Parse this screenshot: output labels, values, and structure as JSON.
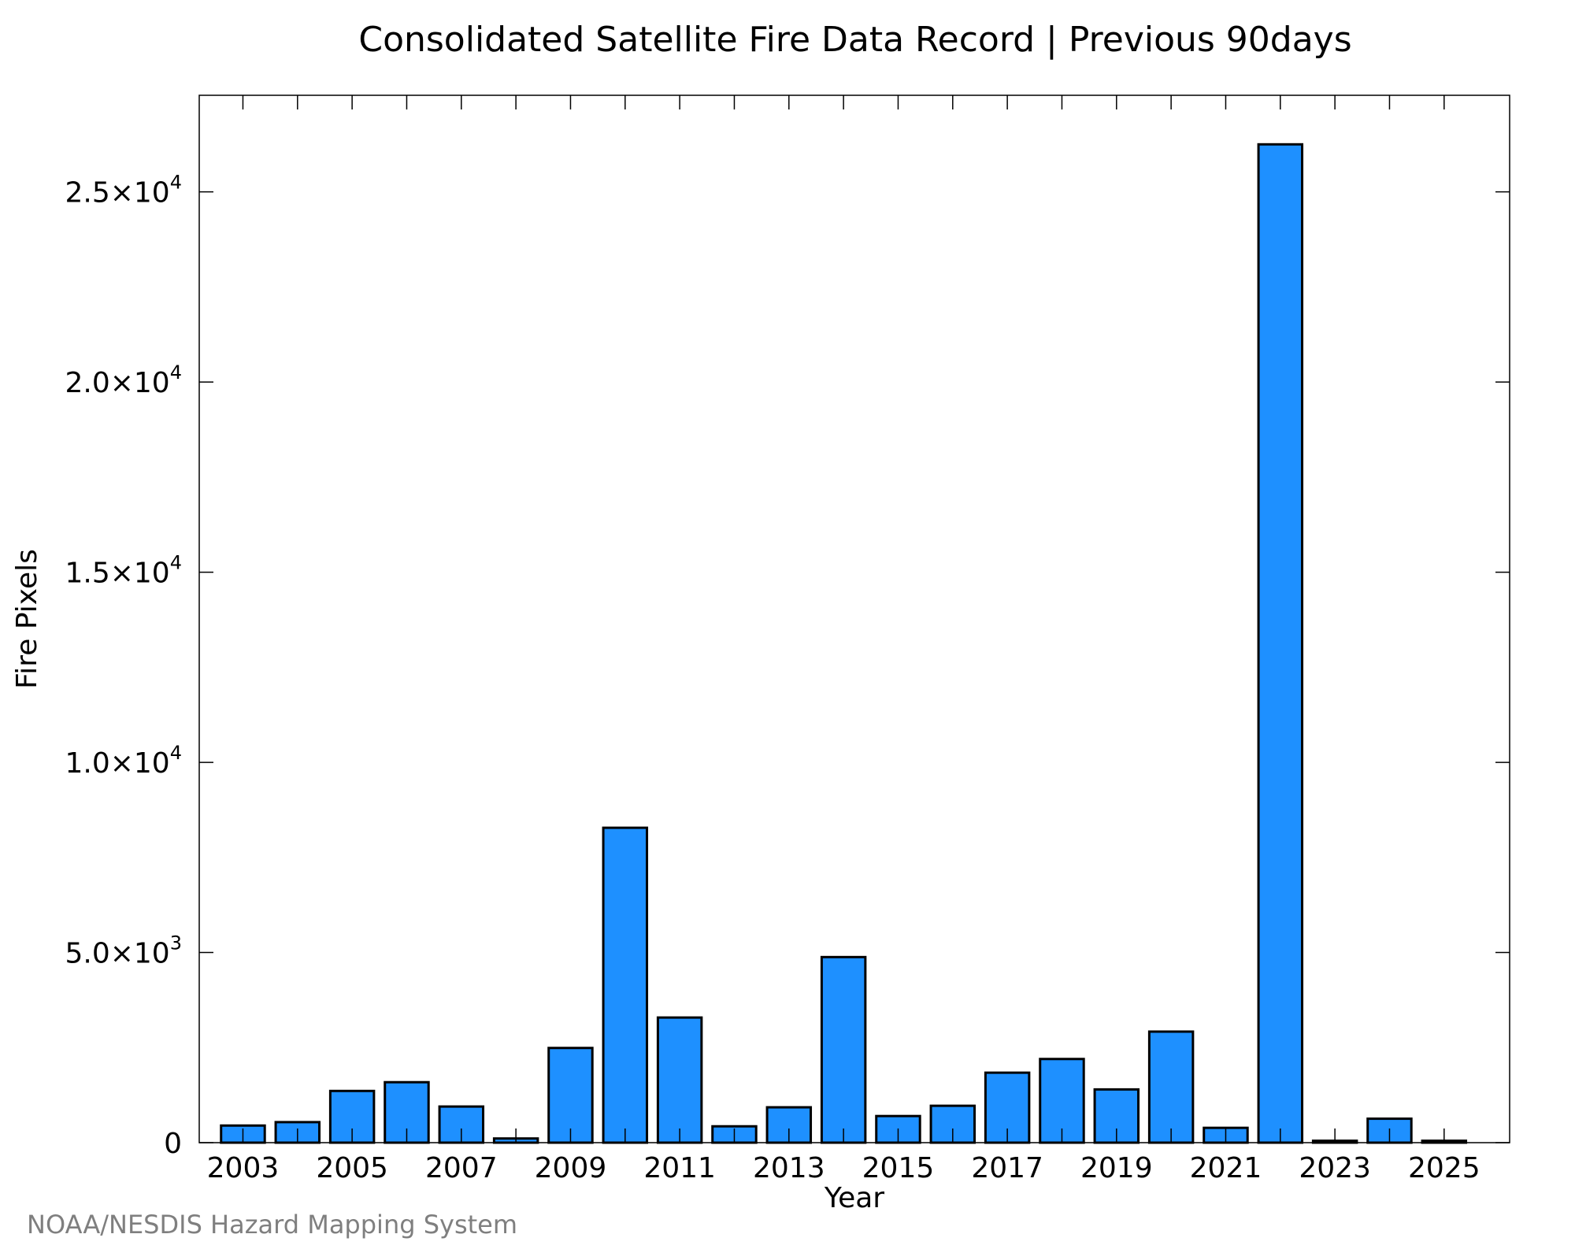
{
  "chart_data": {
    "type": "bar",
    "title": "Consolidated Satellite Fire Data Record | Previous 90days",
    "xlabel": "Year",
    "ylabel": "Fire Pixels",
    "categories": [
      "2003",
      "2004",
      "2005",
      "2006",
      "2007",
      "2008",
      "2009",
      "2010",
      "2011",
      "2012",
      "2013",
      "2014",
      "2015",
      "2016",
      "2017",
      "2018",
      "2019",
      "2020",
      "2021",
      "2022",
      "2023",
      "2024",
      "2025"
    ],
    "values": [
      450,
      540,
      1360,
      1590,
      950,
      110,
      2490,
      8280,
      3290,
      430,
      930,
      4880,
      700,
      970,
      1840,
      2200,
      1400,
      2920,
      390,
      26250,
      50,
      630,
      50
    ],
    "x_tick_labels": [
      "2003",
      "2005",
      "2007",
      "2009",
      "2011",
      "2013",
      "2015",
      "2017",
      "2019",
      "2021",
      "2023",
      "2025"
    ],
    "y_ticks": [
      {
        "value": 0,
        "mantissa": "0",
        "exponent": ""
      },
      {
        "value": 5000,
        "mantissa": "5.0×10",
        "exponent": "3"
      },
      {
        "value": 10000,
        "mantissa": "1.0×10",
        "exponent": "4"
      },
      {
        "value": 15000,
        "mantissa": "1.5×10",
        "exponent": "4"
      },
      {
        "value": 20000,
        "mantissa": "2.0×10",
        "exponent": "4"
      },
      {
        "value": 25000,
        "mantissa": "2.5×10",
        "exponent": "4"
      }
    ],
    "ylim": [
      0,
      27540
    ],
    "xlim": [
      2002.2,
      2026.2
    ],
    "bar_color": "#1e90ff",
    "edge_color": "#000000",
    "grid": false,
    "legend": "none"
  },
  "credit": "NOAA/NESDIS Hazard Mapping System"
}
